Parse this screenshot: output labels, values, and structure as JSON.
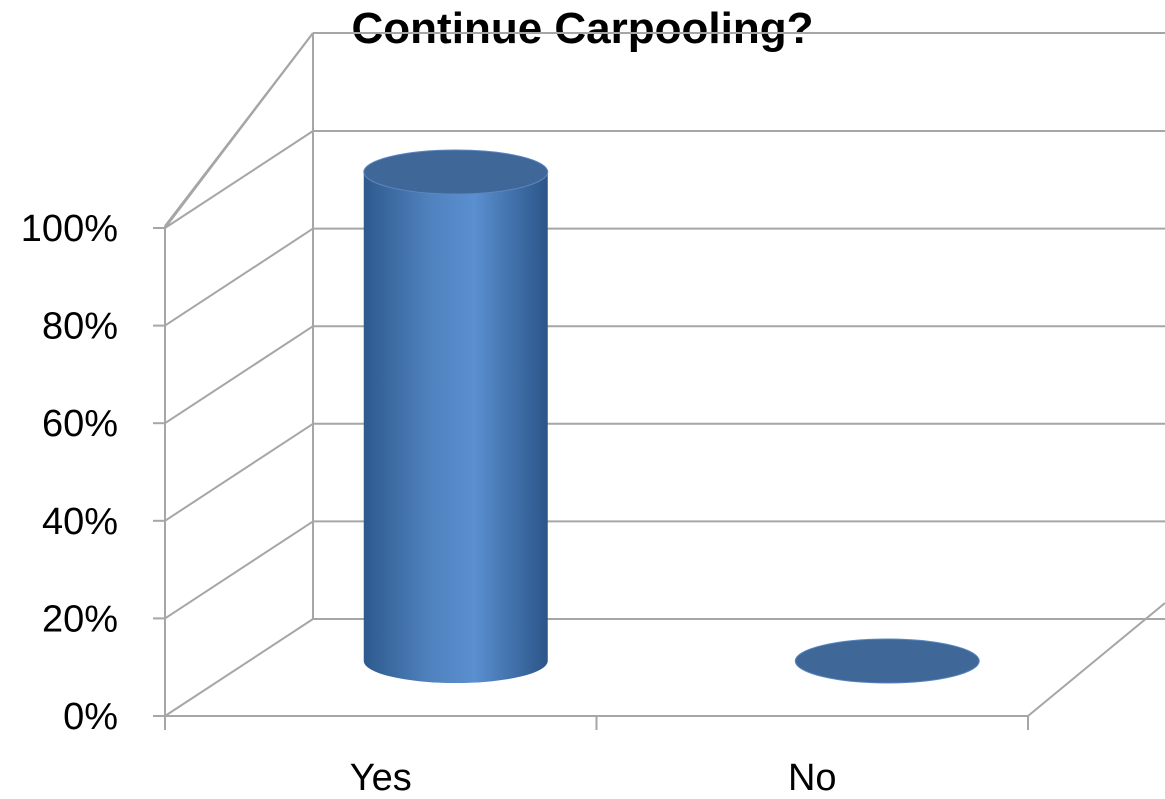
{
  "chart_data": {
    "type": "bar",
    "style": "3d-cylinder",
    "title": "Continue Carpooling?",
    "categories": [
      "Yes",
      "No"
    ],
    "values": [
      100,
      0
    ],
    "ylim": [
      0,
      100
    ],
    "yticks": [
      "0%",
      "20%",
      "40%",
      "60%",
      "80%",
      "100%"
    ],
    "grid": true,
    "colors": {
      "bar": "#4F81BD",
      "bar_dark": "#2E5A8E",
      "bar_top": "#3F6898",
      "grid": "#A6A6A6"
    }
  }
}
